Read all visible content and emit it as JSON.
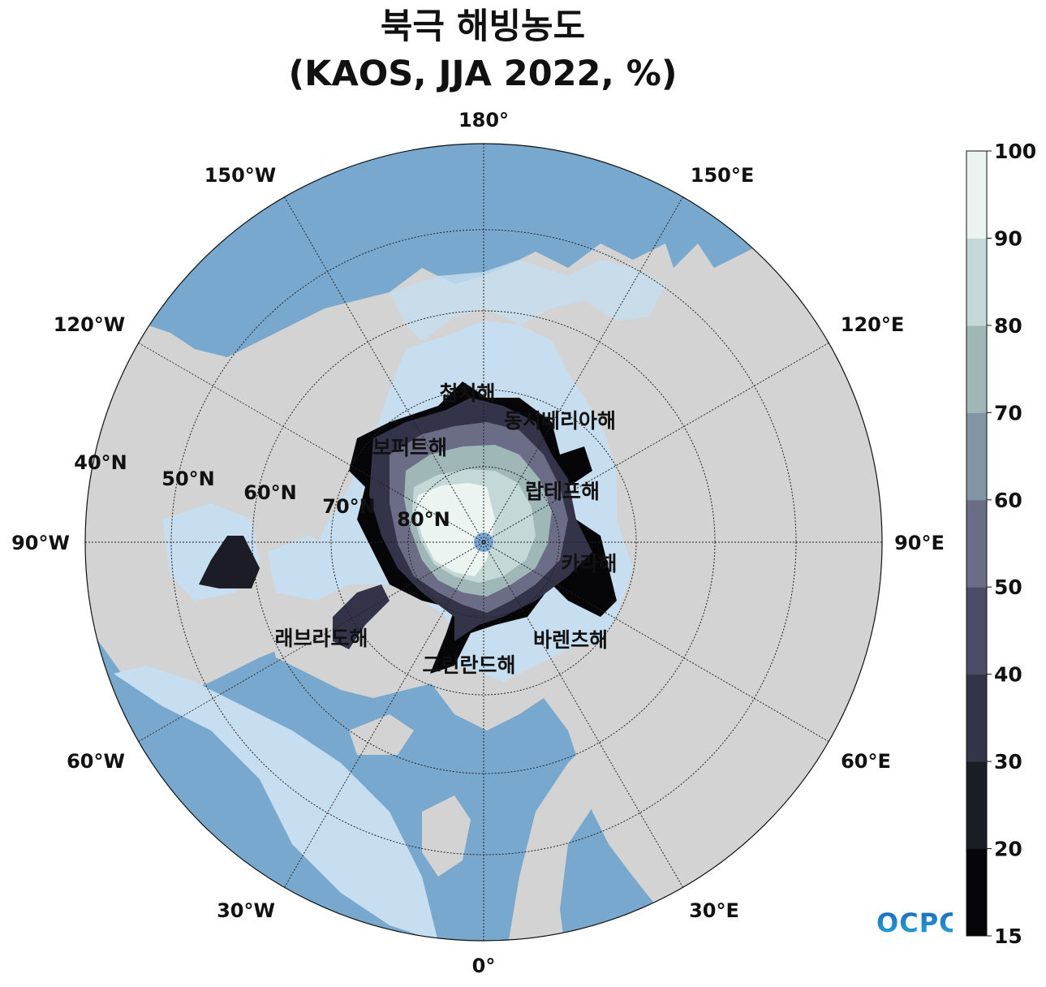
{
  "title": {
    "line1": "북극 해빙농도",
    "line2": "(KAOS, JJA 2022, %)"
  },
  "map": {
    "projection": "north-polar-stereographic",
    "lon_labels": {
      "lon_180": "180°",
      "lon_150E": "150°E",
      "lon_120E": "120°E",
      "lon_90E": "90°E",
      "lon_60E": "60°E",
      "lon_30E": "30°E",
      "lon_0": "0°",
      "lon_30W": "30°W",
      "lon_60W": "60°W",
      "lon_90W": "90°W",
      "lon_120W": "120°W",
      "lon_150W": "150°W"
    },
    "lat_labels": {
      "lat_40": "40°N",
      "lat_50": "50°N",
      "lat_60": "60°N",
      "lat_70": "70°N",
      "lat_80": "80°N"
    },
    "sea_labels": {
      "chukchi": "첨치해",
      "east_siberian": "동시베리아해",
      "beaufort": "보퍼트해",
      "laptev": "랍테프해",
      "kara": "카라해",
      "barents": "바렌츠해",
      "greenland": "그린란드해",
      "labrador": "래브라도해"
    },
    "colors": {
      "land": "#d3d3d3",
      "ocean_deep": "#78a8ce",
      "ocean_shallow": "#c7def0",
      "pole_hole": "#7aa7d3"
    }
  },
  "colorbar": {
    "ticks": [
      "100",
      "90",
      "80",
      "70",
      "60",
      "50",
      "40",
      "30",
      "20",
      "15"
    ],
    "levels": [
      15,
      20,
      30,
      40,
      50,
      60,
      70,
      80,
      90,
      100
    ],
    "colors": [
      "#060608",
      "#1c1c26",
      "#33334a",
      "#4c4c68",
      "#6a6d85",
      "#8295a4",
      "#a0b7b8",
      "#c4d9d7",
      "#ecf4f2"
    ]
  },
  "logo": {
    "text": "OCPC",
    "gradient_top": "#1a66b8",
    "gradient_bottom": "#29a7d8"
  }
}
